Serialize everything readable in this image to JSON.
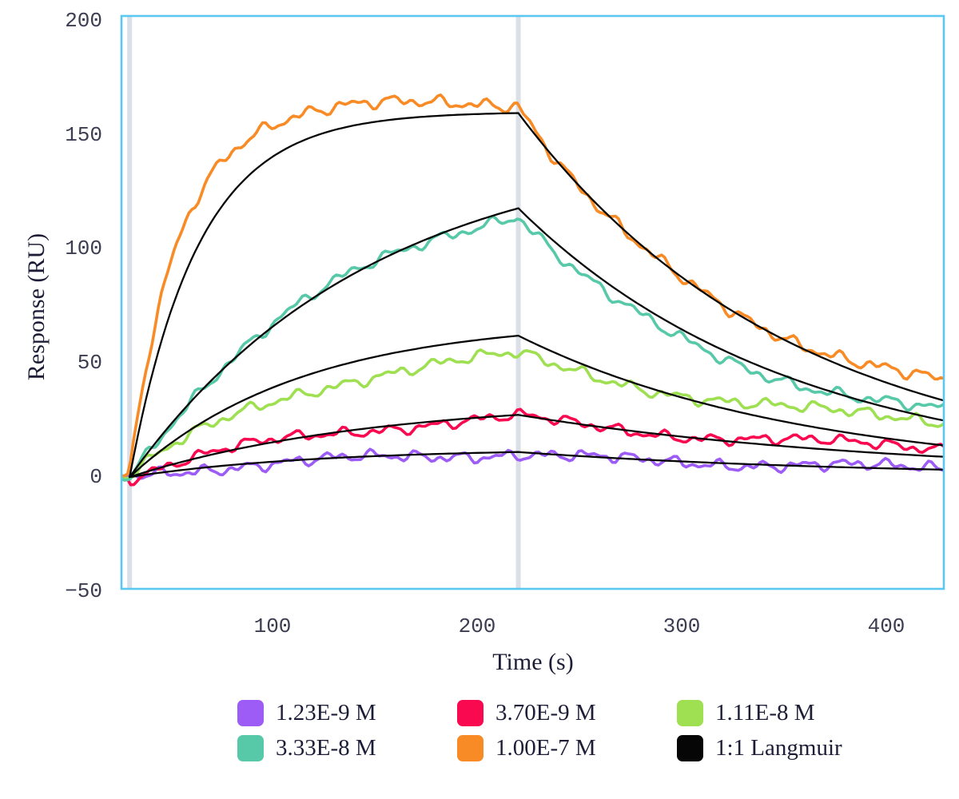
{
  "chart_data": {
    "type": "line",
    "title": "",
    "xlabel": "Time (s)",
    "ylabel": "Response (RU)",
    "xlim": [
      26,
      428
    ],
    "ylim": [
      -49,
      202
    ],
    "x_ticks": [
      100,
      200,
      300,
      400
    ],
    "y_ticks": [
      200,
      150,
      100,
      50,
      0,
      -50
    ],
    "grid": false,
    "legend_position": "bottom",
    "styles": {
      "background": "#ffffff",
      "plot_border_color": "#5ac8f0",
      "marker_band_color": "#dbe0e8",
      "tick_label_color": "#3d3d52",
      "axis_title_color": "#1d1d38",
      "fit_line_color": "#060606"
    },
    "events": {
      "association_start_s": 30,
      "dissociation_start_s": 220,
      "end_s": 428,
      "marker_times_s": [
        30,
        220
      ]
    },
    "sample_t_s": [
      30,
      60,
      100,
      140,
      180,
      220,
      260,
      300,
      340,
      380,
      428
    ],
    "series": [
      {
        "label": "1.23E-9 M",
        "concentration_M": 1.23e-09,
        "color": "#9d5cf5",
        "fit_model": {
          "Req": 12.5,
          "kobs": 0.011,
          "kd": 0.0059
        },
        "data_model": {
          "Req": 12.0,
          "kobs": 0.01,
          "A1": 6.5,
          "k1": 0.009,
          "A2": 3.7,
          "k2": 0.001
        },
        "noise": {
          "amps": [
            1.5,
            1.0,
            0.65,
            1.2
          ],
          "freqs": [
            0.3,
            0.55,
            0.92,
            0.05
          ],
          "phases": [
            0.7,
            2.3,
            4.1,
            1.0
          ]
        },
        "fit_R": [
          0,
          3.5,
          6.7,
          8.8,
          10.1,
          10.9,
          8.6,
          6.8,
          5.4,
          4.2,
          3.2
        ],
        "data_R_approx": [
          0,
          3.1,
          6.0,
          8.0,
          9.3,
          10.2,
          8.1,
          6.6,
          5.5,
          4.7,
          4.1
        ]
      },
      {
        "label": "3.70E-9 M",
        "concentration_M": 3.7e-09,
        "color": "#f9094f",
        "fit_model": {
          "Req": 34,
          "kobs": 0.0085,
          "kd": 0.0054
        },
        "data_model": {
          "Req": 30.5,
          "kobs": 0.01,
          "A1": 13.0,
          "k1": 0.009,
          "A2": 13.1,
          "k2": 0.0008
        },
        "noise": {
          "amps": [
            1.4,
            0.95,
            0.6,
            1.5
          ],
          "freqs": [
            0.28,
            0.52,
            0.88,
            0.045
          ],
          "phases": [
            1.9,
            0.4,
            2.6,
            3.8
          ]
        },
        "fit_R": [
          0,
          7.7,
          15.3,
          20.6,
          24.5,
          27.2,
          21.9,
          17.7,
          14.2,
          11.5,
          8.8
        ],
        "data_R_approx": [
          0,
          7.9,
          15.3,
          20.3,
          23.7,
          25.9,
          21.8,
          18.6,
          16.3,
          14.6,
          13.3
        ]
      },
      {
        "label": "1.11E-8 M",
        "concentration_M": 1.11e-08,
        "color": "#9fdf52",
        "fit_model": {
          "Req": 69,
          "kobs": 0.012,
          "kd": 0.0072
        },
        "data_model": {
          "Req": 60.0,
          "kobs": 0.0115,
          "A1": 30.0,
          "k1": 0.009,
          "A2": 23.4,
          "k2": 0.0008
        },
        "noise": {
          "amps": [
            1.5,
            1.0,
            0.65,
            1.6
          ],
          "freqs": [
            0.27,
            0.5,
            0.85,
            0.04
          ],
          "phases": [
            3.1,
            1.5,
            0.8,
            5.6
          ]
        },
        "fit_R": [
          0,
          20.9,
          39.2,
          50.6,
          57.6,
          62.0,
          46.5,
          34.8,
          26.1,
          19.6,
          13.9
        ],
        "data_R_approx": [
          0,
          17.5,
          33.2,
          43.1,
          49.3,
          53.3,
          43.6,
          36.6,
          31.4,
          27.7,
          25.0
        ]
      },
      {
        "label": "3.33E-8 M",
        "concentration_M": 3.33e-08,
        "color": "#58c9a8",
        "fit_model": {
          "Req": 147,
          "kobs": 0.0085,
          "kd": 0.0075
        },
        "data_model": {
          "Req": 138.0,
          "kobs": 0.0095,
          "A1": 95.0,
          "k1": 0.0105,
          "A2": 20.0,
          "k2": 0.0005
        },
        "noise": {
          "amps": [
            1.5,
            1.05,
            0.7,
            1.4
          ],
          "freqs": [
            0.26,
            0.48,
            0.82,
            0.043
          ],
          "phases": [
            4.4,
            2.8,
            1.2,
            2.2
          ]
        },
        "fit_R": [
          0,
          33.1,
          66.1,
          89.3,
          105.9,
          117.8,
          87.3,
          64.6,
          47.9,
          35.5,
          24.8
        ],
        "data_R_approx": [
          0,
          34.2,
          67.2,
          89.5,
          104.9,
          115.3,
          82.0,
          60.2,
          45.8,
          36.3,
          28.7
        ]
      },
      {
        "label": "1.00E-7 M",
        "concentration_M": 1e-07,
        "color": "#f88b26",
        "fit_model": {
          "Req": 160,
          "kobs": 0.03,
          "kd": 0.0075
        },
        "data_model": {
          "Req": 164.0,
          "kobs": 0.042,
          "A1": 125.0,
          "k1": 0.011,
          "A2": 39.0,
          "k2": 0.0015
        },
        "noise": {
          "amps": [
            1.6,
            1.1,
            0.75,
            1.5
          ],
          "freqs": [
            0.29,
            0.51,
            0.87,
            0.047
          ],
          "phases": [
            5.6,
            3.4,
            0.2,
            0.6
          ]
        },
        "fit_R": [
          0,
          95.0,
          140.4,
          154.1,
          158.2,
          160.0,
          118.5,
          87.8,
          65.0,
          48.2,
          33.6
        ],
        "data_R_approx": [
          0,
          117.5,
          155.3,
          162.4,
          164.0,
          164.0,
          117.2,
          86.5,
          66.1,
          52.2,
          41.2
        ]
      }
    ],
    "fit_legend": {
      "label": "1:1 Langmuir",
      "color": "#060606"
    },
    "legend": {
      "items": [
        {
          "label": "1.23E-9 M",
          "color": "#9d5cf5"
        },
        {
          "label": "3.70E-9 M",
          "color": "#f9094f"
        },
        {
          "label": "1.11E-8 M",
          "color": "#9fdf52"
        },
        {
          "label": "3.33E-8 M",
          "color": "#58c9a8"
        },
        {
          "label": "1.00E-7 M",
          "color": "#f88b26"
        },
        {
          "label": "1:1 Langmuir",
          "color": "#060606"
        }
      ]
    }
  }
}
